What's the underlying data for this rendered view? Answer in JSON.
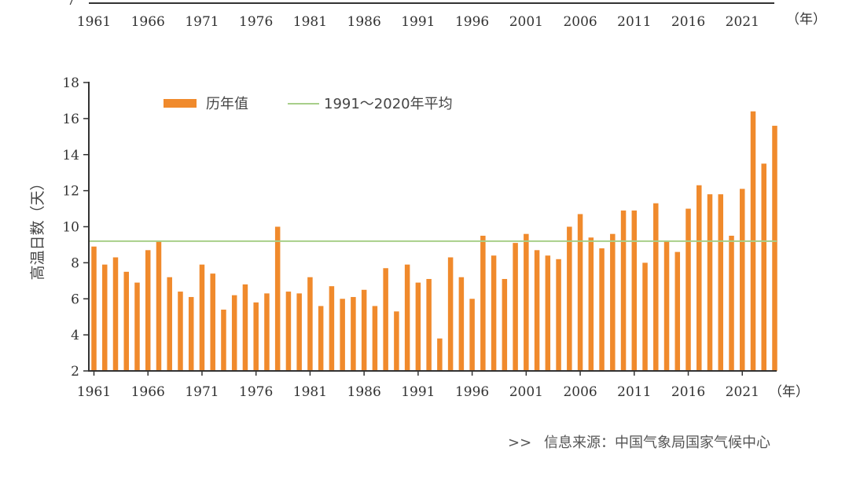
{
  "top_partial_axis": {
    "ticks": [
      "1961",
      "1966",
      "1971",
      "1976",
      "1981",
      "1986",
      "1991",
      "1996",
      "2001",
      "2006",
      "2011",
      "2016",
      "2021"
    ],
    "unit": "（年）",
    "ylabel_fragment": "7"
  },
  "chart_data": {
    "type": "bar",
    "title": "",
    "xlabel": "（年）",
    "ylabel": "高温日数（天）",
    "ylim": [
      2,
      18
    ],
    "yticks": [
      2,
      4,
      6,
      8,
      10,
      12,
      14,
      16,
      18
    ],
    "xtick_labels": [
      "1961",
      "1966",
      "1971",
      "1976",
      "1981",
      "1986",
      "1991",
      "1996",
      "2001",
      "2006",
      "2011",
      "2016",
      "2021"
    ],
    "grid": false,
    "legend_position": "top-left",
    "categories": [
      "1961",
      "1962",
      "1963",
      "1964",
      "1965",
      "1966",
      "1967",
      "1968",
      "1969",
      "1970",
      "1971",
      "1972",
      "1973",
      "1974",
      "1975",
      "1976",
      "1977",
      "1978",
      "1979",
      "1980",
      "1981",
      "1982",
      "1983",
      "1984",
      "1985",
      "1986",
      "1987",
      "1988",
      "1989",
      "1990",
      "1991",
      "1992",
      "1993",
      "1994",
      "1995",
      "1996",
      "1997",
      "1998",
      "1999",
      "2000",
      "2001",
      "2002",
      "2003",
      "2004",
      "2005",
      "2006",
      "2007",
      "2008",
      "2009",
      "2010",
      "2011",
      "2012",
      "2013",
      "2014",
      "2015",
      "2016",
      "2017",
      "2018",
      "2019",
      "2020",
      "2021",
      "2022",
      "2023",
      "2024"
    ],
    "series": [
      {
        "name": "历年值",
        "kind": "bar",
        "color": "#f08a2c",
        "values": [
          8.9,
          7.9,
          8.3,
          7.5,
          6.9,
          8.7,
          9.2,
          7.2,
          6.4,
          6.1,
          7.9,
          7.4,
          5.4,
          6.2,
          6.8,
          5.8,
          6.3,
          10.0,
          6.4,
          6.3,
          7.2,
          5.6,
          6.7,
          6.0,
          6.1,
          6.5,
          5.6,
          7.7,
          5.3,
          7.9,
          6.9,
          7.1,
          3.8,
          8.3,
          7.2,
          6.0,
          9.5,
          8.4,
          7.1,
          9.1,
          9.6,
          8.7,
          8.4,
          8.2,
          10.0,
          10.7,
          9.4,
          8.8,
          9.6,
          10.9,
          10.9,
          8.0,
          11.3,
          9.2,
          8.6,
          11.0,
          12.3,
          11.8,
          11.8,
          9.5,
          12.1,
          16.4,
          13.5,
          15.6
        ]
      },
      {
        "name": "1991～2020年平均",
        "kind": "hline",
        "color": "#a8cf8a",
        "value": 9.2
      }
    ]
  },
  "source": {
    "text": "信息来源：中国气象局国家气候中心",
    "prefix": ">>"
  }
}
